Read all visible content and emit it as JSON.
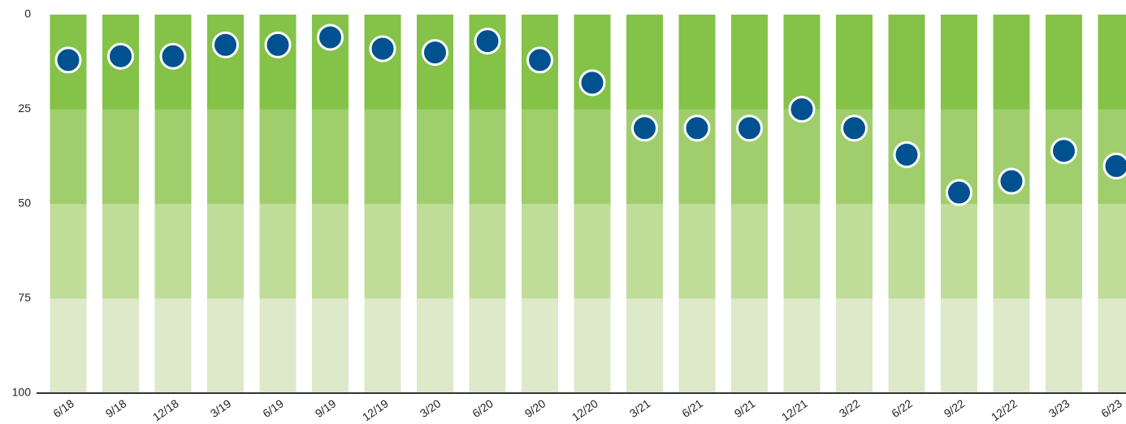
{
  "chart_data": {
    "type": "dot",
    "categories": [
      "6/18",
      "9/18",
      "12/18",
      "3/19",
      "6/19",
      "9/19",
      "12/19",
      "3/20",
      "6/20",
      "9/20",
      "12/20",
      "3/21",
      "6/21",
      "9/21",
      "12/21",
      "3/22",
      "6/22",
      "9/22",
      "12/22",
      "3/23",
      "6/23"
    ],
    "values": [
      12,
      11,
      11,
      8,
      8,
      6,
      9,
      10,
      7,
      12,
      18,
      30,
      30,
      30,
      25,
      30,
      37,
      47,
      44,
      36,
      40
    ],
    "color": "#00518f",
    "ylim": [
      0,
      100
    ],
    "yticks": [
      0,
      25,
      50,
      75,
      100
    ],
    "y_inverted": true,
    "band_colors": [
      "#84c248",
      "#a0ce6c",
      "#bfdd98",
      "#dde9c9"
    ]
  }
}
